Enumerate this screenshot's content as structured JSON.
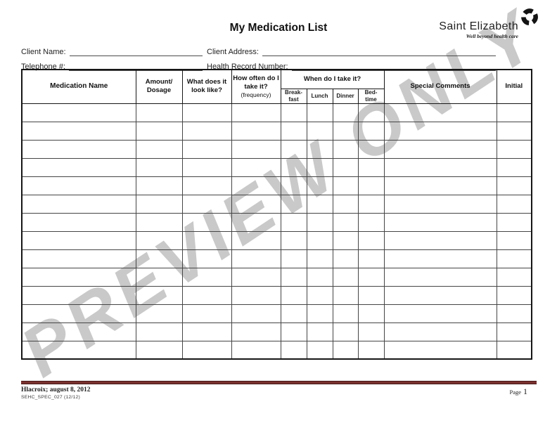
{
  "document": {
    "title": "My Medication List",
    "watermark": "PREVIEW ONLY"
  },
  "logo": {
    "name": "Saint Elizabeth",
    "tagline": "Well beyond health care",
    "icon": "circular-tri-arc-mark"
  },
  "fields": {
    "client_name_label": "Client Name:",
    "client_address_label": "Client Address:",
    "telephone_label": "Telephone #:",
    "health_record_label": "Health Record Number:"
  },
  "table": {
    "header": {
      "medication": "Medication Name",
      "amount": [
        "Amount/",
        "Dosage"
      ],
      "appearance": [
        "What does it",
        "look like?"
      ],
      "frequency": [
        "How often do I",
        "take it?"
      ],
      "frequency_note": "(frequency)",
      "when": "When do I take it?",
      "when_sub": {
        "breakfast": [
          "Break-",
          "fast"
        ],
        "lunch": "Lunch",
        "dinner": "Dinner",
        "bedtime": [
          "Bed-",
          "time"
        ]
      },
      "comments": "Special Comments",
      "initial": "Initial"
    },
    "body_rows": 14,
    "columns_count": 10
  },
  "footer": {
    "revision": "Hlacroix; august 8, 2012",
    "doc_code": "SEHC_SPEC_027 (12/12)",
    "page_label": "Page",
    "page_number": "1"
  },
  "colors": {
    "rule_maroon": "#7a3230",
    "watermark_gray": "#c9c9c9",
    "grid_line": "#454545"
  }
}
